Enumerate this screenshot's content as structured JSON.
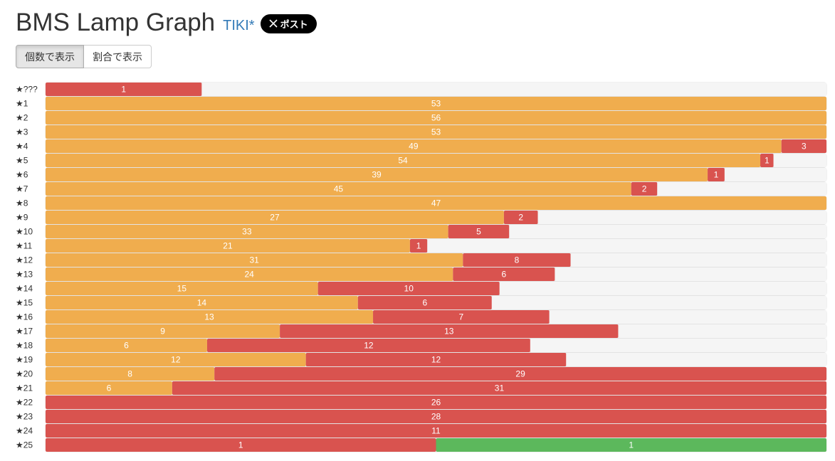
{
  "header": {
    "title": "BMS Lamp Graph",
    "link": "TIKI*",
    "post": "ポスト"
  },
  "buttons": [
    "個数で表示",
    "割合で表示"
  ],
  "chart_data": {
    "type": "stacked-bar-h",
    "categories": [
      "★???",
      "★1",
      "★2",
      "★3",
      "★4",
      "★5",
      "★6",
      "★7",
      "★8",
      "★9",
      "★10",
      "★11",
      "★12",
      "★13",
      "★14",
      "★15",
      "★16",
      "★17",
      "★18",
      "★19",
      "★20",
      "★21",
      "★22",
      "★23",
      "★24",
      "★25"
    ],
    "series": [
      {
        "color": "#f0ad4e",
        "labels": true,
        "values": [
          null,
          53,
          56,
          53,
          49,
          54,
          39,
          45,
          47,
          27,
          33,
          21,
          31,
          24,
          15,
          14,
          13,
          9,
          6,
          12,
          8,
          6,
          null,
          null,
          null,
          null
        ]
      },
      {
        "color": "#d9534f",
        "labels": true,
        "values": [
          1,
          null,
          null,
          null,
          3,
          1,
          1,
          2,
          null,
          2,
          5,
          1,
          8,
          6,
          10,
          6,
          7,
          13,
          12,
          12,
          29,
          31,
          26,
          28,
          11,
          1
        ]
      },
      {
        "color": "#5cb85c",
        "labels": true,
        "values": [
          null,
          null,
          null,
          null,
          null,
          null,
          null,
          null,
          null,
          null,
          null,
          null,
          null,
          null,
          null,
          null,
          null,
          null,
          null,
          null,
          null,
          null,
          null,
          null,
          null,
          1
        ]
      },
      {
        "color": "#f5f5f5",
        "labels": false,
        "values": [
          4,
          null,
          null,
          null,
          null,
          4,
          6,
          13,
          null,
          17,
          26,
          23,
          19,
          16,
          18,
          15,
          11,
          8,
          11,
          12,
          null,
          null,
          null,
          null,
          null,
          null
        ]
      }
    ]
  }
}
